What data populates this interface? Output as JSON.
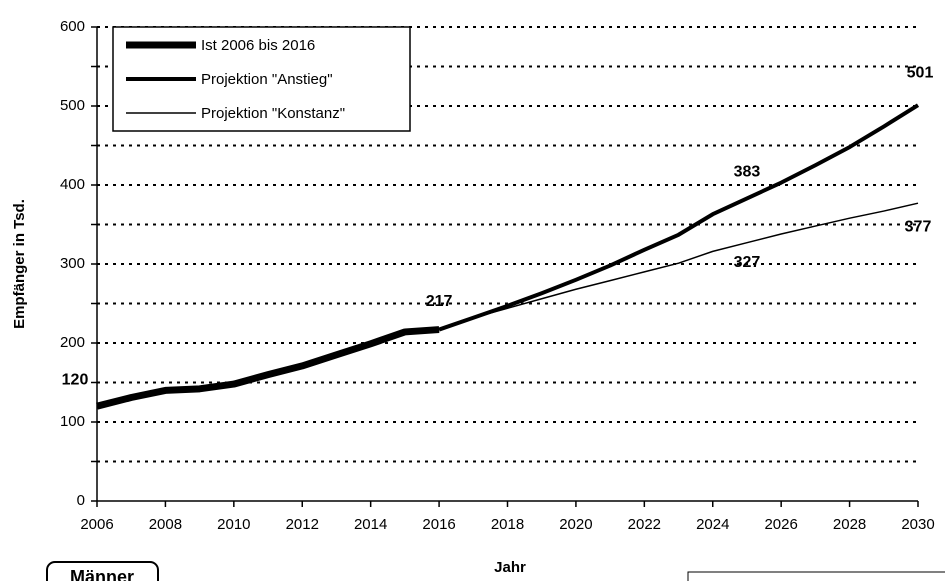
{
  "chart_data": {
    "type": "line",
    "y_label": "Empfänger in Tsd.",
    "x_label": "Jahr",
    "note": "Männer",
    "xlim": [
      2006,
      2030
    ],
    "xticks": [
      2006,
      2008,
      2010,
      2012,
      2014,
      2016,
      2018,
      2020,
      2022,
      2024,
      2026,
      2028,
      2030
    ],
    "ylim": [
      0,
      600
    ],
    "yticks": [
      0,
      100,
      200,
      300,
      400,
      500,
      600
    ],
    "minor_yticks": [
      50,
      150,
      250,
      350,
      450,
      550
    ],
    "grid": true,
    "legend": "top-left",
    "series": [
      {
        "name": "Ist 2006 bis 2016",
        "color": "#000000",
        "x": [
          2006,
          2007,
          2008,
          2009,
          2010,
          2011,
          2012,
          2013,
          2014,
          2015,
          2016
        ],
        "values": [
          120,
          131,
          140,
          142,
          148,
          160,
          171,
          185,
          199,
          214,
          217
        ],
        "value_labels": [
          "120",
          null,
          null,
          null,
          null,
          null,
          null,
          null,
          null,
          null,
          "217"
        ]
      },
      {
        "name": "Projektion \"Anstieg\"",
        "color": "#000000",
        "x": [
          2016,
          2017,
          2018,
          2019,
          2020,
          2021,
          2022,
          2023,
          2024,
          2025,
          2026,
          2027,
          2028,
          2029,
          2030
        ],
        "values": [
          217,
          232,
          247,
          263,
          280,
          298,
          318,
          337,
          363,
          383,
          403,
          425,
          448,
          474,
          501
        ],
        "value_labels": [
          null,
          null,
          null,
          null,
          null,
          null,
          null,
          null,
          null,
          "383",
          null,
          null,
          null,
          null,
          "501"
        ]
      },
      {
        "name": "Projektion \"Konstanz\"",
        "color": "#000000",
        "x": [
          2016,
          2017,
          2018,
          2019,
          2020,
          2021,
          2022,
          2023,
          2024,
          2025,
          2026,
          2027,
          2028,
          2029,
          2030
        ],
        "values": [
          217,
          232,
          244,
          256,
          268,
          279,
          290,
          301,
          316,
          327,
          338,
          348,
          358,
          367,
          377
        ],
        "value_labels": [
          null,
          null,
          null,
          null,
          null,
          null,
          null,
          null,
          null,
          "327",
          null,
          null,
          null,
          null,
          "377"
        ]
      }
    ]
  }
}
